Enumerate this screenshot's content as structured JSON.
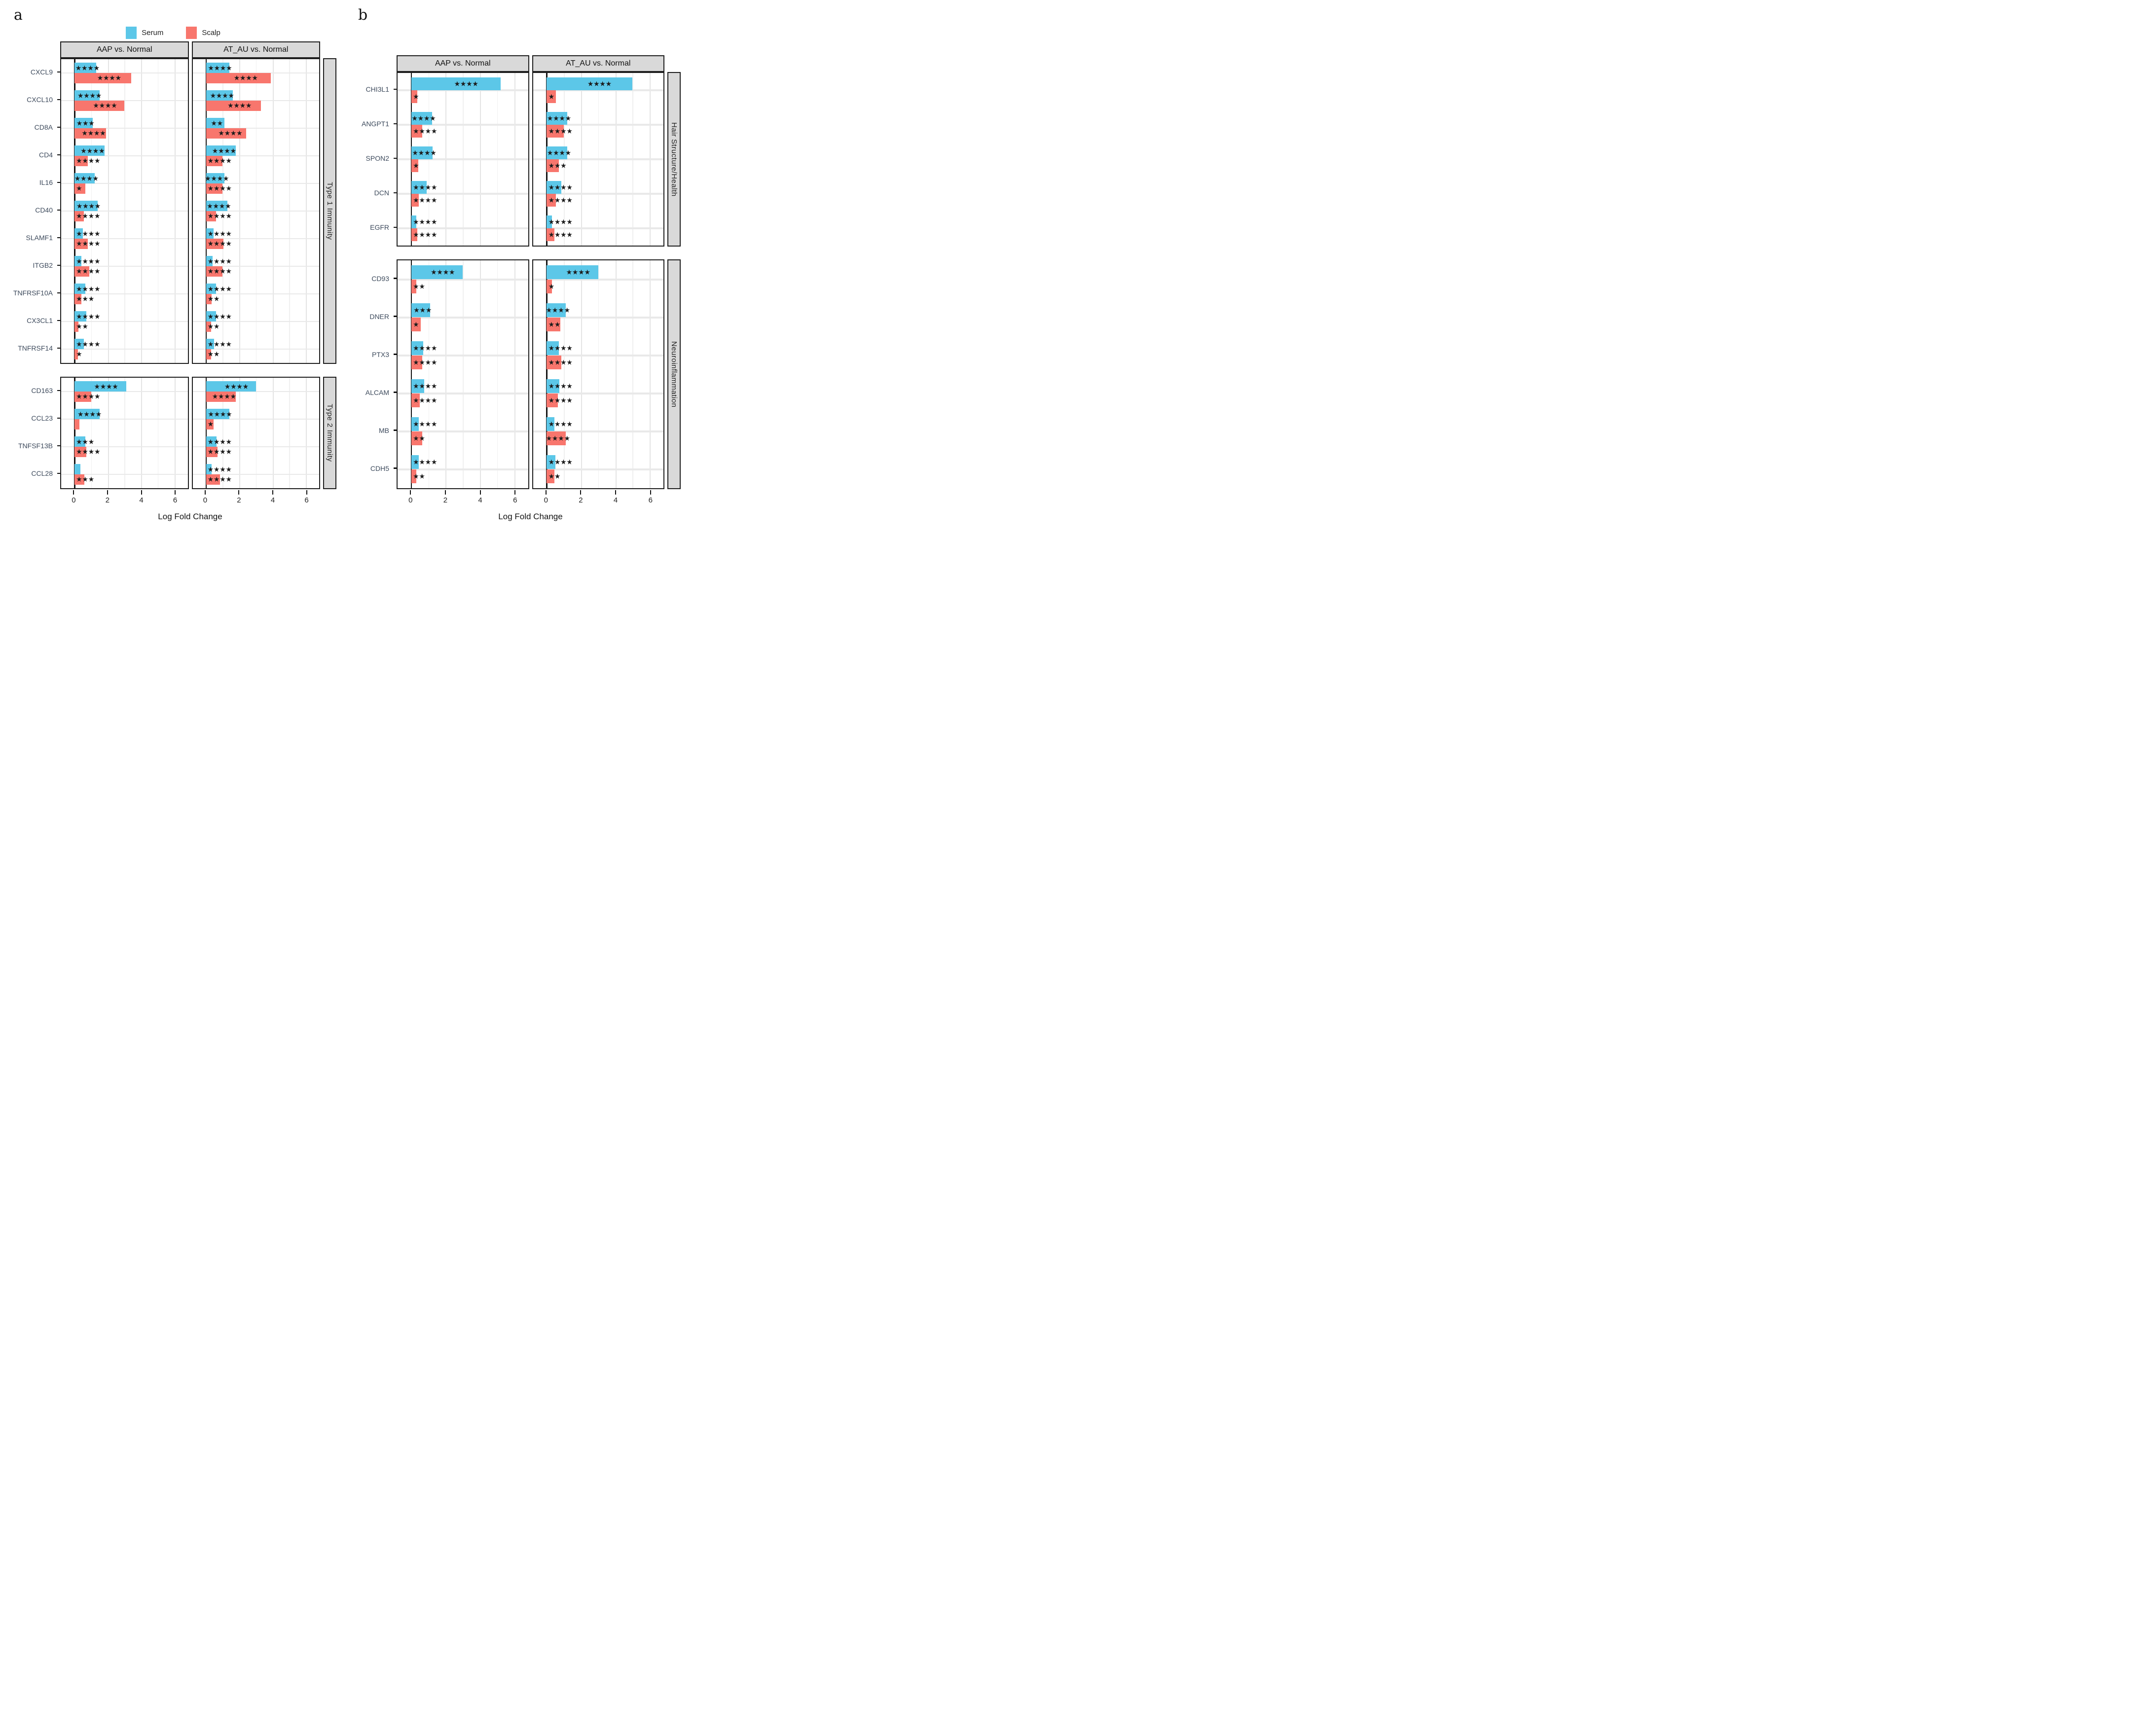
{
  "legend": {
    "serum": "Serum",
    "scalp": "Scalp"
  },
  "colors": {
    "serum": "#5CC7E8",
    "scalp": "#F8766D",
    "strip_bg": "#D9D9D9",
    "gene_label": "#3D4A5C",
    "stars": "#1C1C1C"
  },
  "chart_data": [
    {
      "type": "bar",
      "panel_label": "a",
      "orientation": "horizontal",
      "xlabel": "Log Fold Change",
      "x_ticks": [
        0,
        2,
        4,
        6
      ],
      "xlim": [
        -0.8,
        6.8
      ],
      "grid": true,
      "legend_position": "top",
      "series_names": [
        "Serum",
        "Scalp"
      ],
      "columns": [
        "AAP vs. Normal",
        "AT_AU vs. Normal"
      ],
      "comparison_keys": [
        "AAP",
        "AT_AU"
      ],
      "facets": [
        {
          "label": "Type 1 Immunity",
          "rows": [
            {
              "gene": "CXCL9",
              "AAP": {
                "serum": 1.3,
                "serum_sig": "****",
                "scalp": 3.4,
                "scalp_sig": "****"
              },
              "AT_AU": {
                "serum": 1.4,
                "serum_sig": "****",
                "scalp": 3.9,
                "scalp_sig": "****"
              }
            },
            {
              "gene": "CXCL10",
              "AAP": {
                "serum": 1.5,
                "serum_sig": "****",
                "scalp": 3.0,
                "scalp_sig": "****"
              },
              "AT_AU": {
                "serum": 1.6,
                "serum_sig": "****",
                "scalp": 3.3,
                "scalp_sig": "****"
              }
            },
            {
              "gene": "CD8A",
              "AAP": {
                "serum": 1.1,
                "serum_sig": "***",
                "scalp": 1.9,
                "scalp_sig": "****"
              },
              "AT_AU": {
                "serum": 1.1,
                "serum_sig": "**",
                "scalp": 2.4,
                "scalp_sig": "****"
              }
            },
            {
              "gene": "CD4",
              "AAP": {
                "serum": 1.8,
                "serum_sig": "****",
                "scalp": 0.8,
                "scalp_sig": "****"
              },
              "AT_AU": {
                "serum": 1.8,
                "serum_sig": "****",
                "scalp": 1.0,
                "scalp_sig": "****"
              }
            },
            {
              "gene": "IL16",
              "AAP": {
                "serum": 1.2,
                "serum_sig": "****",
                "scalp": 0.65,
                "scalp_sig": "*"
              },
              "AT_AU": {
                "serum": 1.1,
                "serum_sig": "****",
                "scalp": 1.0,
                "scalp_sig": "****"
              }
            },
            {
              "gene": "CD40",
              "AAP": {
                "serum": 1.4,
                "serum_sig": "****",
                "scalp": 0.55,
                "scalp_sig": "****"
              },
              "AT_AU": {
                "serum": 1.3,
                "serum_sig": "****",
                "scalp": 0.6,
                "scalp_sig": "****"
              }
            },
            {
              "gene": "SLAMF1",
              "AAP": {
                "serum": 0.5,
                "serum_sig": "****",
                "scalp": 0.8,
                "scalp_sig": "****"
              },
              "AT_AU": {
                "serum": 0.45,
                "serum_sig": "****",
                "scalp": 1.05,
                "scalp_sig": "****"
              }
            },
            {
              "gene": "ITGB2",
              "AAP": {
                "serum": 0.4,
                "serum_sig": "****",
                "scalp": 0.9,
                "scalp_sig": "****"
              },
              "AT_AU": {
                "serum": 0.4,
                "serum_sig": "****",
                "scalp": 1.0,
                "scalp_sig": "****"
              }
            },
            {
              "gene": "TNFRSF10A",
              "AAP": {
                "serum": 0.65,
                "serum_sig": "****",
                "scalp": 0.4,
                "scalp_sig": "***"
              },
              "AT_AU": {
                "serum": 0.6,
                "serum_sig": "****",
                "scalp": 0.35,
                "scalp_sig": "**"
              }
            },
            {
              "gene": "CX3CL1",
              "AAP": {
                "serum": 0.7,
                "serum_sig": "****",
                "scalp": 0.25,
                "scalp_sig": "**"
              },
              "AT_AU": {
                "serum": 0.6,
                "serum_sig": "****",
                "scalp": 0.3,
                "scalp_sig": "**"
              }
            },
            {
              "gene": "TNFRSF14",
              "AAP": {
                "serum": 0.55,
                "serum_sig": "****",
                "scalp": 0.2,
                "scalp_sig": "*"
              },
              "AT_AU": {
                "serum": 0.5,
                "serum_sig": "****",
                "scalp": 0.3,
                "scalp_sig": "**"
              }
            }
          ]
        },
        {
          "label": "Type 2 Immunity",
          "rows": [
            {
              "gene": "CD163",
              "AAP": {
                "serum": 3.1,
                "serum_sig": "****",
                "scalp": 1.0,
                "scalp_sig": "****"
              },
              "AT_AU": {
                "serum": 3.0,
                "serum_sig": "****",
                "scalp": 1.8,
                "scalp_sig": "****"
              }
            },
            {
              "gene": "CCL23",
              "AAP": {
                "serum": 1.5,
                "serum_sig": "****",
                "scalp": 0.3,
                "scalp_sig": ""
              },
              "AT_AU": {
                "serum": 1.4,
                "serum_sig": "****",
                "scalp": 0.45,
                "scalp_sig": "*"
              }
            },
            {
              "gene": "TNFSF13B",
              "AAP": {
                "serum": 0.65,
                "serum_sig": "***",
                "scalp": 0.7,
                "scalp_sig": "****"
              },
              "AT_AU": {
                "serum": 0.65,
                "serum_sig": "****",
                "scalp": 0.7,
                "scalp_sig": "****"
              }
            },
            {
              "gene": "CCL28",
              "AAP": {
                "serum": 0.35,
                "serum_sig": "",
                "scalp": 0.6,
                "scalp_sig": "***"
              },
              "AT_AU": {
                "serum": 0.35,
                "serum_sig": "****",
                "scalp": 0.85,
                "scalp_sig": "****"
              }
            }
          ]
        }
      ]
    },
    {
      "type": "bar",
      "panel_label": "b",
      "orientation": "horizontal",
      "xlabel": "Log Fold Change",
      "x_ticks": [
        0,
        2,
        4,
        6
      ],
      "xlim": [
        -0.8,
        6.8
      ],
      "grid": true,
      "series_names": [
        "Serum",
        "Scalp"
      ],
      "columns": [
        "AAP vs. Normal",
        "AT_AU vs. Normal"
      ],
      "comparison_keys": [
        "AAP",
        "AT_AU"
      ],
      "facets": [
        {
          "label": "Hair Structure/Health",
          "rows": [
            {
              "gene": "CHI3L1",
              "AAP": {
                "serum": 5.2,
                "serum_sig": "****",
                "scalp": 0.35,
                "scalp_sig": "*"
              },
              "AT_AU": {
                "serum": 5.0,
                "serum_sig": "****",
                "scalp": 0.55,
                "scalp_sig": "*"
              }
            },
            {
              "gene": "ANGPT1",
              "AAP": {
                "serum": 1.2,
                "serum_sig": "****",
                "scalp": 0.65,
                "scalp_sig": "****"
              },
              "AT_AU": {
                "serum": 1.2,
                "serum_sig": "****",
                "scalp": 1.0,
                "scalp_sig": "****"
              }
            },
            {
              "gene": "SPON2",
              "AAP": {
                "serum": 1.25,
                "serum_sig": "****",
                "scalp": 0.4,
                "scalp_sig": "*"
              },
              "AT_AU": {
                "serum": 1.2,
                "serum_sig": "****",
                "scalp": 0.7,
                "scalp_sig": "***"
              }
            },
            {
              "gene": "DCN",
              "AAP": {
                "serum": 0.9,
                "serum_sig": "****",
                "scalp": 0.45,
                "scalp_sig": "****"
              },
              "AT_AU": {
                "serum": 0.85,
                "serum_sig": "****",
                "scalp": 0.55,
                "scalp_sig": "****"
              }
            },
            {
              "gene": "EGFR",
              "AAP": {
                "serum": 0.3,
                "serum_sig": "****",
                "scalp": 0.35,
                "scalp_sig": "****"
              },
              "AT_AU": {
                "serum": 0.3,
                "serum_sig": "****",
                "scalp": 0.45,
                "scalp_sig": "****"
              }
            }
          ]
        },
        {
          "label": "Neuroinflammation",
          "rows": [
            {
              "gene": "CD93",
              "AAP": {
                "serum": 3.0,
                "serum_sig": "****",
                "scalp": 0.3,
                "scalp_sig": "**"
              },
              "AT_AU": {
                "serum": 3.0,
                "serum_sig": "****",
                "scalp": 0.3,
                "scalp_sig": "*"
              }
            },
            {
              "gene": "DNER",
              "AAP": {
                "serum": 1.1,
                "serum_sig": "***",
                "scalp": 0.55,
                "scalp_sig": "*"
              },
              "AT_AU": {
                "serum": 1.1,
                "serum_sig": "****",
                "scalp": 0.8,
                "scalp_sig": "**"
              }
            },
            {
              "gene": "PTX3",
              "AAP": {
                "serum": 0.7,
                "serum_sig": "****",
                "scalp": 0.65,
                "scalp_sig": "****"
              },
              "AT_AU": {
                "serum": 0.7,
                "serum_sig": "****",
                "scalp": 0.85,
                "scalp_sig": "****"
              }
            },
            {
              "gene": "ALCAM",
              "AAP": {
                "serum": 0.75,
                "serum_sig": "****",
                "scalp": 0.5,
                "scalp_sig": "****"
              },
              "AT_AU": {
                "serum": 0.75,
                "serum_sig": "****",
                "scalp": 0.65,
                "scalp_sig": "****"
              }
            },
            {
              "gene": "MB",
              "AAP": {
                "serum": 0.45,
                "serum_sig": "****",
                "scalp": 0.65,
                "scalp_sig": "**"
              },
              "AT_AU": {
                "serum": 0.45,
                "serum_sig": "****",
                "scalp": 1.1,
                "scalp_sig": "****"
              }
            },
            {
              "gene": "CDH5",
              "AAP": {
                "serum": 0.45,
                "serum_sig": "****",
                "scalp": 0.3,
                "scalp_sig": "**"
              },
              "AT_AU": {
                "serum": 0.5,
                "serum_sig": "****",
                "scalp": 0.45,
                "scalp_sig": "**"
              }
            }
          ]
        }
      ]
    }
  ]
}
